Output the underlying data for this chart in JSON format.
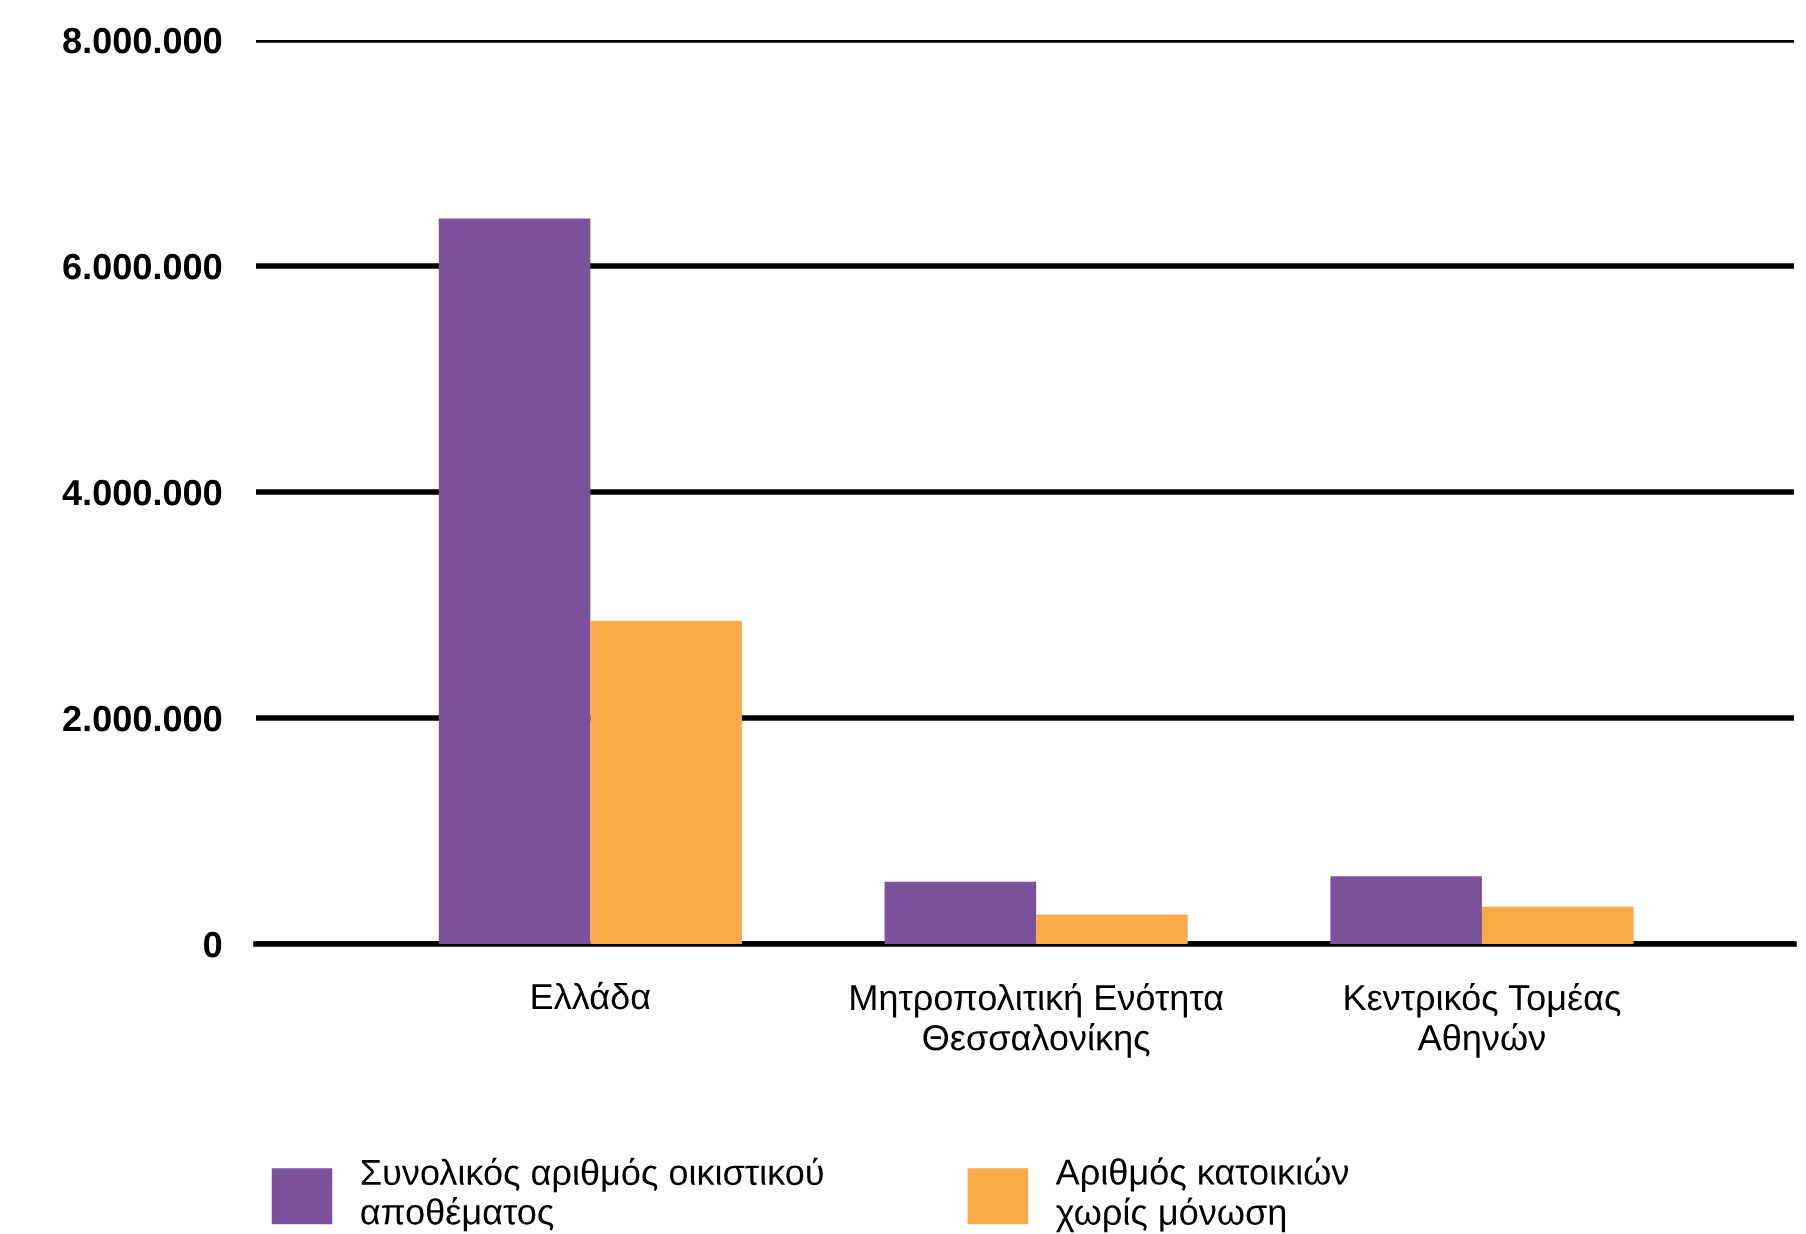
{
  "chart_data": {
    "type": "bar",
    "categories": [
      "Ελλάδα",
      "Μητροπολιτική Ενότητα\nΘεσσαλονίκης",
      "Κεντρικός Τομέας\nΑθηνών"
    ],
    "series": [
      {
        "name": "Συνολικός αριθμός οικιστικού\nαποθέματος",
        "color": "#7b519c",
        "values": [
          6420000,
          550000,
          600000
        ]
      },
      {
        "name": "Αριθμός κατοικιών\nχωρίς μόνωση",
        "color": "#faab47",
        "values": [
          2860000,
          260000,
          330000
        ]
      }
    ],
    "ylim": [
      0,
      8000000
    ],
    "yticks": [
      {
        "value": 0,
        "label": "0"
      },
      {
        "value": 2000000,
        "label": "2.000.000"
      },
      {
        "value": 4000000,
        "label": "4.000.000"
      },
      {
        "value": 6000000,
        "label": "6.000.000"
      },
      {
        "value": 8000000,
        "label": "8.000.000"
      }
    ],
    "grid": "y",
    "legend": "bottom"
  }
}
